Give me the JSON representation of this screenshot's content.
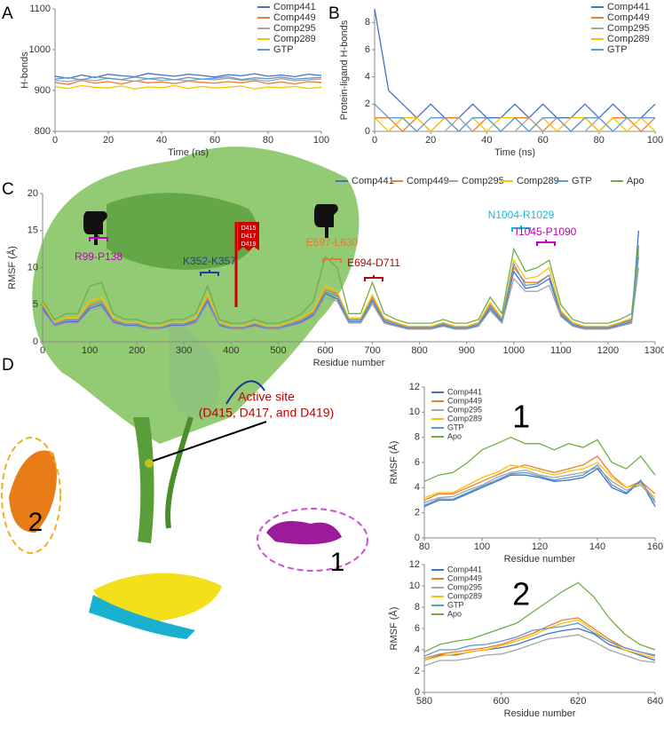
{
  "chart_data": [
    {
      "type": "line",
      "panel_label": "A",
      "x_label": "Time (ns)",
      "y_label": "H-bonds",
      "legend": "upper right",
      "x": [
        0,
        5,
        10,
        15,
        20,
        25,
        30,
        35,
        40,
        45,
        50,
        55,
        60,
        65,
        70,
        75,
        80,
        85,
        90,
        95,
        100
      ],
      "xlim": [
        0,
        100
      ],
      "xticks": [
        0,
        20,
        40,
        60,
        80,
        100
      ],
      "ylim": [
        800,
        1100
      ],
      "yticks": [
        800,
        900,
        1000,
        1100
      ],
      "series": [
        {
          "name": "Comp441",
          "color": "#4472c4",
          "values": [
            935,
            930,
            938,
            932,
            940,
            936,
            934,
            942,
            938,
            935,
            940,
            937,
            933,
            939,
            936,
            941,
            935,
            938,
            934,
            940,
            937
          ]
        },
        {
          "name": "Comp449",
          "color": "#ed7d31",
          "values": [
            920,
            915,
            925,
            918,
            922,
            916,
            924,
            919,
            921,
            917,
            923,
            920,
            918,
            922,
            919,
            924,
            917,
            921,
            916,
            922,
            920
          ]
        },
        {
          "name": "Comp295",
          "color": "#a5a5a5",
          "values": [
            925,
            922,
            928,
            924,
            930,
            926,
            923,
            929,
            925,
            927,
            924,
            928,
            926,
            930,
            925,
            927,
            923,
            929,
            924,
            926,
            928
          ]
        },
        {
          "name": "Comp289",
          "color": "#ffc000",
          "values": [
            910,
            905,
            912,
            908,
            906,
            911,
            904,
            909,
            907,
            912,
            905,
            910,
            906,
            908,
            911,
            904,
            909,
            907,
            910,
            905,
            908
          ]
        },
        {
          "name": "GTP",
          "color": "#5b9bd5",
          "values": [
            928,
            932,
            926,
            934,
            930,
            927,
            933,
            929,
            931,
            926,
            932,
            928,
            930,
            934,
            927,
            931,
            929,
            933,
            928,
            930,
            932
          ]
        }
      ]
    },
    {
      "type": "line",
      "panel_label": "B",
      "x_label": "Time (ns)",
      "y_label": "Protein-ligand H-bonds",
      "legend": "upper right",
      "x": [
        0,
        5,
        10,
        15,
        20,
        25,
        30,
        35,
        40,
        45,
        50,
        55,
        60,
        65,
        70,
        75,
        80,
        85,
        90,
        95,
        100
      ],
      "xlim": [
        0,
        100
      ],
      "xticks": [
        0,
        20,
        40,
        60,
        80,
        100
      ],
      "ylim": [
        0,
        9
      ],
      "yticks": [
        0,
        2,
        4,
        6,
        8
      ],
      "series": [
        {
          "name": "Comp441",
          "color": "#4472c4",
          "values": [
            9,
            3,
            2,
            1,
            2,
            1,
            1,
            2,
            1,
            1,
            2,
            1,
            2,
            1,
            1,
            2,
            1,
            2,
            1,
            1,
            2
          ]
        },
        {
          "name": "Comp449",
          "color": "#ed7d31",
          "values": [
            1,
            1,
            0,
            1,
            0,
            1,
            1,
            0,
            1,
            0,
            1,
            1,
            0,
            1,
            0,
            1,
            0,
            1,
            1,
            0,
            1
          ]
        },
        {
          "name": "Comp295",
          "color": "#a5a5a5",
          "values": [
            0,
            0,
            1,
            0,
            0,
            0,
            1,
            0,
            0,
            0,
            0,
            1,
            0,
            0,
            0,
            0,
            1,
            0,
            0,
            0,
            0
          ]
        },
        {
          "name": "Comp289",
          "color": "#ffc000",
          "values": [
            1,
            0,
            1,
            1,
            0,
            1,
            0,
            1,
            0,
            1,
            1,
            0,
            1,
            0,
            1,
            1,
            0,
            1,
            0,
            1,
            0
          ]
        },
        {
          "name": "GTP",
          "color": "#5b9bd5",
          "values": [
            2,
            1,
            1,
            0,
            1,
            1,
            0,
            1,
            1,
            0,
            1,
            0,
            1,
            1,
            0,
            1,
            1,
            0,
            1,
            1,
            1
          ]
        }
      ]
    },
    {
      "type": "line",
      "panel_label": "C",
      "x_label": "Residue number",
      "y_label": "RMSF (Å)",
      "legend": "top",
      "x": [
        0,
        25,
        50,
        75,
        100,
        125,
        150,
        175,
        200,
        225,
        250,
        275,
        300,
        325,
        350,
        375,
        400,
        425,
        450,
        475,
        500,
        525,
        550,
        575,
        600,
        625,
        650,
        675,
        700,
        725,
        750,
        775,
        800,
        825,
        850,
        875,
        900,
        925,
        950,
        975,
        1000,
        1025,
        1050,
        1075,
        1100,
        1125,
        1150,
        1175,
        1200,
        1225,
        1250,
        1265
      ],
      "xlim": [
        0,
        1300
      ],
      "xticks": [
        0,
        100,
        200,
        300,
        400,
        500,
        600,
        700,
        800,
        900,
        1000,
        1100,
        1200,
        1300
      ],
      "ylim": [
        0,
        20
      ],
      "yticks": [
        0,
        5,
        10,
        15,
        20
      ],
      "annotations": [
        {
          "text": "R99-P138",
          "color": "#c000c0"
        },
        {
          "text": "K352-K357",
          "color": "#1f3fa0"
        },
        {
          "text": "E597-L630",
          "color": "#e07b39"
        },
        {
          "text": "E694-D711",
          "color": "#a01010"
        },
        {
          "text": "N1004-R1029",
          "color": "#1fb5d0"
        },
        {
          "text": "I1045-P1090",
          "color": "#c000c0"
        }
      ],
      "flag_labels": [
        "D415",
        "D417",
        "D419"
      ],
      "series": [
        {
          "name": "Comp441",
          "color": "#4472c4",
          "values": [
            4.5,
            2.2,
            2.7,
            2.7,
            4.5,
            5,
            2.7,
            2.2,
            2.2,
            1.8,
            1.8,
            2.2,
            2.2,
            2.7,
            5.5,
            2.2,
            1.8,
            1.8,
            2.2,
            1.8,
            1.8,
            2.2,
            2.7,
            3.6,
            6.5,
            5.8,
            2.7,
            2.7,
            5.5,
            2.7,
            2.2,
            1.8,
            1.8,
            1.8,
            2.2,
            1.8,
            1.8,
            2.2,
            4.5,
            2.7,
            9.5,
            7.2,
            7.5,
            8.5,
            3.6,
            2.2,
            1.8,
            1.8,
            1.8,
            2.2,
            2.7,
            15
          ]
        },
        {
          "name": "Comp449",
          "color": "#ed7d31",
          "values": [
            5,
            2.5,
            3,
            3,
            5,
            5.5,
            3,
            2.5,
            2.5,
            2,
            2,
            2.5,
            2.5,
            3,
            6,
            2.5,
            2,
            2,
            2.5,
            2,
            2,
            2.5,
            3,
            4,
            7,
            6.5,
            3,
            3,
            6,
            3,
            2.5,
            2,
            2,
            2,
            2.5,
            2,
            2,
            2.5,
            5,
            3,
            10,
            8,
            8,
            9,
            4,
            2.5,
            2,
            2,
            2,
            2.5,
            3,
            12
          ]
        },
        {
          "name": "Comp295",
          "color": "#a5a5a5",
          "values": [
            4.2,
            2.1,
            2.5,
            2.5,
            4.2,
            4.6,
            2.5,
            2.1,
            2.1,
            1.7,
            1.7,
            2.1,
            2.1,
            2.5,
            5.1,
            2.1,
            1.7,
            1.7,
            2.1,
            1.7,
            1.7,
            2.1,
            2.5,
            3.4,
            6,
            5.5,
            2.5,
            2.5,
            5.1,
            2.5,
            2.1,
            1.7,
            1.7,
            1.7,
            2.1,
            1.7,
            1.7,
            2.1,
            4.2,
            2.5,
            8.5,
            6.8,
            6.8,
            7.6,
            3.4,
            2.1,
            1.7,
            1.7,
            1.7,
            2.1,
            2.5,
            10
          ]
        },
        {
          "name": "Comp289",
          "color": "#ffc000",
          "values": [
            5.2,
            2.6,
            3.2,
            3.2,
            5.5,
            6,
            3.2,
            2.6,
            2.6,
            2.1,
            2.1,
            2.6,
            2.6,
            3.2,
            6.3,
            2.6,
            2.1,
            2.1,
            2.6,
            2.1,
            2.1,
            2.6,
            3.2,
            4.2,
            7.5,
            6.8,
            3.2,
            3.2,
            6.3,
            3.2,
            2.6,
            2.1,
            2.1,
            2.1,
            2.6,
            2.1,
            2.1,
            2.6,
            5.3,
            3.2,
            11,
            8.5,
            8.8,
            10,
            4.2,
            2.6,
            2.1,
            2.1,
            2.1,
            2.6,
            3.2,
            12.5
          ]
        },
        {
          "name": "GTP",
          "color": "#5b9bd5",
          "values": [
            4.8,
            2.4,
            2.9,
            2.9,
            4.8,
            5.2,
            2.9,
            2.4,
            2.4,
            1.9,
            1.9,
            2.4,
            2.4,
            2.9,
            5.7,
            2.4,
            1.9,
            1.9,
            2.4,
            1.9,
            1.9,
            2.4,
            2.9,
            3.8,
            6.7,
            6.2,
            2.9,
            2.9,
            5.7,
            2.9,
            2.4,
            1.9,
            1.9,
            1.9,
            2.4,
            1.9,
            1.9,
            2.4,
            4.8,
            2.9,
            10.5,
            7.6,
            7.8,
            9,
            3.8,
            2.4,
            1.9,
            1.9,
            1.9,
            2.4,
            2.9,
            11.5
          ]
        },
        {
          "name": "Apo",
          "color": "#70ad47",
          "values": [
            5.5,
            3,
            3.8,
            3.8,
            7.5,
            8,
            3.8,
            3,
            3,
            2.5,
            2.5,
            3,
            3,
            3.8,
            7.5,
            3,
            2.5,
            2.5,
            3,
            2.5,
            2.5,
            3,
            3.8,
            5.5,
            11.5,
            10,
            3.8,
            3.8,
            8,
            3.8,
            3,
            2.5,
            2.5,
            2.5,
            3,
            2.5,
            2.5,
            3,
            6,
            3.8,
            12.5,
            9.5,
            10,
            11,
            5,
            3,
            2.5,
            2.5,
            2.5,
            3,
            3.8,
            13
          ]
        }
      ]
    },
    {
      "type": "line",
      "title": "1",
      "x_label": "Residue number",
      "y_label": "RMSF (Å)",
      "legend": "upper left",
      "x": [
        80,
        85,
        90,
        95,
        100,
        105,
        110,
        115,
        120,
        125,
        130,
        135,
        140,
        145,
        150,
        155,
        160
      ],
      "xlim": [
        80,
        160
      ],
      "xticks": [
        80,
        100,
        120,
        140,
        160
      ],
      "ylim": [
        0,
        12
      ],
      "yticks": [
        0,
        2,
        4,
        6,
        8,
        10,
        12
      ],
      "series": [
        {
          "name": "Comp441",
          "color": "#4472c4",
          "values": [
            2.5,
            3,
            3,
            3.5,
            4,
            4.5,
            5,
            5,
            4.8,
            4.5,
            4.6,
            4.8,
            5.5,
            4,
            3.5,
            4.5,
            2.5
          ]
        },
        {
          "name": "Comp449",
          "color": "#ed7d31",
          "values": [
            3,
            3.5,
            3.5,
            4,
            4.5,
            5,
            5.5,
            5.8,
            5.5,
            5.2,
            5.5,
            5.8,
            6.5,
            5,
            4,
            4.5,
            3.5
          ]
        },
        {
          "name": "Comp295",
          "color": "#a5a5a5",
          "values": [
            2.8,
            3.2,
            3.3,
            3.8,
            4.2,
            4.8,
            5.2,
            5.4,
            5,
            4.8,
            5,
            5.2,
            5.6,
            4.5,
            3.8,
            4.2,
            3
          ]
        },
        {
          "name": "Comp289",
          "color": "#ffc000",
          "values": [
            3.2,
            3.6,
            3.6,
            4.2,
            4.8,
            5.2,
            5.8,
            5.6,
            5.3,
            5,
            5.3,
            5.5,
            6,
            4.8,
            4,
            4.3,
            3.2
          ]
        },
        {
          "name": "GTP",
          "color": "#5b9bd5",
          "values": [
            2.6,
            3.1,
            3.1,
            3.6,
            4.1,
            4.6,
            5.1,
            5.2,
            4.9,
            4.6,
            4.8,
            5,
            5.8,
            4.2,
            3.6,
            4.6,
            2.8
          ]
        },
        {
          "name": "Apo",
          "color": "#70ad47",
          "values": [
            4.5,
            5,
            5.2,
            6,
            7,
            7.5,
            8,
            7.5,
            7.5,
            7,
            7.5,
            7.2,
            7.8,
            6,
            5.5,
            6.5,
            5
          ]
        }
      ]
    },
    {
      "type": "line",
      "title": "2",
      "x_label": "Residue number",
      "y_label": "RMSF (Å)",
      "legend": "upper left",
      "x": [
        580,
        584,
        588,
        592,
        596,
        600,
        604,
        608,
        612,
        616,
        620,
        624,
        628,
        632,
        636,
        640
      ],
      "xlim": [
        580,
        640
      ],
      "xticks": [
        580,
        600,
        620,
        640
      ],
      "ylim": [
        0,
        12
      ],
      "yticks": [
        0,
        2,
        4,
        6,
        8,
        10,
        12
      ],
      "series": [
        {
          "name": "Comp441",
          "color": "#4472c4",
          "values": [
            3,
            3.5,
            3.5,
            3.8,
            4,
            4.2,
            4.5,
            5,
            5.5,
            5.8,
            6,
            5.5,
            4.5,
            4,
            3.5,
            3
          ]
        },
        {
          "name": "Comp449",
          "color": "#ed7d31",
          "values": [
            3.2,
            3.6,
            3.8,
            4,
            4.2,
            4.5,
            5,
            5.5,
            6.2,
            6.8,
            7,
            6,
            5,
            4.2,
            3.8,
            3.4
          ]
        },
        {
          "name": "Comp295",
          "color": "#a5a5a5",
          "values": [
            2.5,
            3,
            3,
            3.2,
            3.5,
            3.6,
            4,
            4.5,
            5,
            5.2,
            5.4,
            4.8,
            4,
            3.5,
            3,
            2.8
          ]
        },
        {
          "name": "Comp289",
          "color": "#ffc000",
          "values": [
            3,
            3.4,
            3.6,
            3.8,
            4,
            4.4,
            4.8,
            5.3,
            6,
            6.5,
            6.8,
            5.8,
            4.8,
            4,
            3.6,
            3.2
          ]
        },
        {
          "name": "GTP",
          "color": "#5b9bd5",
          "values": [
            3.4,
            4,
            4,
            4.4,
            4.5,
            4.8,
            5.2,
            5.8,
            6,
            6.2,
            6.5,
            5.6,
            4.8,
            4.2,
            3.8,
            3.5
          ]
        },
        {
          "name": "Apo",
          "color": "#70ad47",
          "values": [
            3.8,
            4.5,
            4.8,
            5,
            5.5,
            6,
            6.5,
            7.5,
            8.5,
            9.5,
            10.3,
            9,
            7,
            5.5,
            4.5,
            4
          ]
        }
      ]
    }
  ],
  "structure": {
    "panel_label": "D",
    "active_site": "Active site",
    "active_site_residues": "(D415, D417, and D419)",
    "region_2": "2",
    "region_1": "1"
  }
}
